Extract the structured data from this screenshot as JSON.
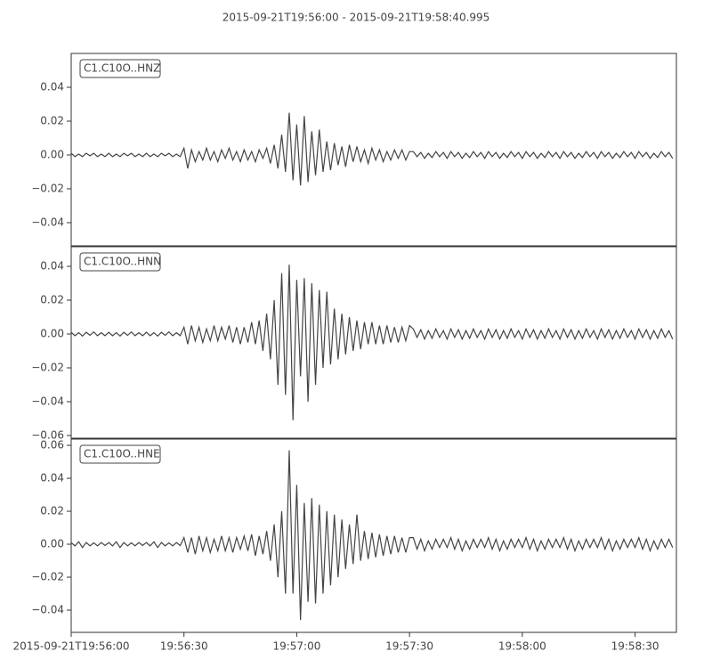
{
  "chart_data": {
    "type": "line",
    "title": "2015-09-21T19:56:00  -  2015-09-21T19:58:40.995",
    "color": "#444444",
    "xlim": [
      0,
      160.995
    ],
    "xticks": [
      {
        "value": 0,
        "label": "2015-09-21T19:56:00"
      },
      {
        "value": 30,
        "label": "19:56:30"
      },
      {
        "value": 60,
        "label": "19:57:00"
      },
      {
        "value": 90,
        "label": "19:57:30"
      },
      {
        "value": 120,
        "label": "19:58:00"
      },
      {
        "value": 150,
        "label": "19:58:30"
      }
    ],
    "x": [
      0,
      1,
      2,
      3,
      4,
      5,
      6,
      7,
      8,
      9,
      10,
      11,
      12,
      13,
      14,
      15,
      16,
      17,
      18,
      19,
      20,
      21,
      22,
      23,
      24,
      25,
      26,
      27,
      28,
      29,
      30,
      31,
      32,
      33,
      34,
      35,
      36,
      37,
      38,
      39,
      40,
      41,
      42,
      43,
      44,
      45,
      46,
      47,
      48,
      49,
      50,
      51,
      52,
      53,
      54,
      55,
      56,
      57,
      58,
      59,
      60,
      61,
      62,
      63,
      64,
      65,
      66,
      67,
      68,
      69,
      70,
      71,
      72,
      73,
      74,
      75,
      76,
      77,
      78,
      79,
      80,
      81,
      82,
      83,
      84,
      85,
      86,
      87,
      88,
      89,
      90,
      91,
      92,
      93,
      94,
      95,
      96,
      97,
      98,
      99,
      100,
      101,
      102,
      103,
      104,
      105,
      106,
      107,
      108,
      109,
      110,
      111,
      112,
      113,
      114,
      115,
      116,
      117,
      118,
      119,
      120,
      121,
      122,
      123,
      124,
      125,
      126,
      127,
      128,
      129,
      130,
      131,
      132,
      133,
      134,
      135,
      136,
      137,
      138,
      139,
      140,
      141,
      142,
      143,
      144,
      145,
      146,
      147,
      148,
      149,
      150,
      151,
      152,
      153,
      154,
      155,
      156,
      157,
      158,
      159,
      160
    ],
    "panels": [
      {
        "name": "C1.C10O..HNZ",
        "ylim": [
          -0.0537,
          0.06
        ],
        "yticks": [
          {
            "value": -0.04,
            "label": "−0.04"
          },
          {
            "value": -0.02,
            "label": "−0.02"
          },
          {
            "value": 0,
            "label": "0.00"
          },
          {
            "value": 0.02,
            "label": "0.02"
          },
          {
            "value": 0.04,
            "label": "0.04"
          }
        ],
        "values": [
          0.001,
          -0.001,
          0.0005,
          -0.001,
          0.001,
          -0.0005,
          0.001,
          -0.001,
          0.0005,
          -0.001,
          0.001,
          -0.001,
          0.0005,
          -0.001,
          0.001,
          -0.0005,
          0.001,
          -0.001,
          0.0005,
          -0.001,
          0.001,
          -0.001,
          0.0005,
          -0.001,
          0.001,
          -0.0005,
          0.001,
          -0.001,
          0.0005,
          -0.001,
          0.004,
          -0.008,
          0.003,
          -0.004,
          0.002,
          -0.003,
          0.004,
          -0.003,
          0.002,
          -0.004,
          0.003,
          -0.002,
          0.004,
          -0.003,
          0.002,
          -0.004,
          0.003,
          -0.003,
          0.002,
          -0.004,
          0.003,
          -0.002,
          0.004,
          -0.005,
          0.006,
          -0.008,
          0.012,
          -0.01,
          0.025,
          -0.015,
          0.018,
          -0.018,
          0.023,
          -0.016,
          0.014,
          -0.012,
          0.015,
          -0.01,
          0.008,
          -0.009,
          0.007,
          -0.006,
          0.005,
          -0.007,
          0.006,
          -0.004,
          0.005,
          -0.004,
          0.003,
          -0.005,
          0.004,
          -0.003,
          0.003,
          -0.004,
          0.002,
          -0.003,
          0.003,
          -0.002,
          0.003,
          -0.003,
          0.002,
          0.002,
          -0.001,
          0.0015,
          -0.002,
          0.001,
          -0.0015,
          0.002,
          -0.001,
          0.0015,
          -0.002,
          0.002,
          -0.001,
          0.0015,
          -0.002,
          0.001,
          -0.0015,
          0.002,
          -0.001,
          0.0015,
          -0.002,
          0.002,
          -0.001,
          0.0015,
          -0.002,
          0.001,
          -0.0015,
          0.002,
          -0.001,
          0.0015,
          -0.002,
          0.002,
          -0.001,
          0.0015,
          -0.002,
          0.001,
          -0.0015,
          0.002,
          -0.001,
          0.0015,
          -0.002,
          0.002,
          -0.001,
          0.0015,
          -0.002,
          0.001,
          -0.0015,
          0.002,
          -0.001,
          0.0015,
          -0.002,
          0.002,
          -0.001,
          0.0015,
          -0.002,
          0.001,
          -0.0015,
          0.002,
          -0.001,
          0.0015,
          -0.002,
          0.002,
          -0.001,
          0.0015,
          -0.002,
          0.001,
          -0.0015,
          0.002,
          -0.001,
          0.0015,
          -0.002
        ]
      },
      {
        "name": "C1.C10O..HNN",
        "ylim": [
          -0.0616,
          0.0516
        ],
        "yticks": [
          {
            "value": -0.06,
            "label": "−0.06"
          },
          {
            "value": -0.04,
            "label": "−0.04"
          },
          {
            "value": -0.02,
            "label": "−0.02"
          },
          {
            "value": 0,
            "label": "0.00"
          },
          {
            "value": 0.02,
            "label": "0.02"
          },
          {
            "value": 0.04,
            "label": "0.04"
          }
        ],
        "values": [
          0.001,
          -0.001,
          0.0008,
          -0.0012,
          0.001,
          -0.0008,
          0.0012,
          -0.001,
          0.0008,
          -0.001,
          0.001,
          -0.001,
          0.0008,
          -0.0012,
          0.001,
          -0.0008,
          0.0012,
          -0.001,
          0.0008,
          -0.001,
          0.001,
          -0.001,
          0.0008,
          -0.0012,
          0.001,
          -0.0008,
          0.0012,
          -0.001,
          0.0008,
          -0.001,
          0.004,
          -0.006,
          0.005,
          -0.004,
          0.004,
          -0.005,
          0.003,
          -0.004,
          0.005,
          -0.004,
          0.004,
          -0.003,
          0.005,
          -0.005,
          0.004,
          -0.006,
          0.004,
          -0.005,
          0.007,
          -0.006,
          0.008,
          -0.01,
          0.012,
          -0.015,
          0.02,
          -0.03,
          0.036,
          -0.036,
          0.041,
          -0.051,
          0.032,
          -0.025,
          0.033,
          -0.04,
          0.03,
          -0.03,
          0.026,
          -0.02,
          0.025,
          -0.018,
          0.015,
          -0.015,
          0.012,
          -0.012,
          0.01,
          -0.01,
          0.008,
          -0.009,
          0.007,
          -0.006,
          0.007,
          -0.006,
          0.005,
          -0.006,
          0.005,
          -0.005,
          0.004,
          -0.005,
          0.004,
          -0.004,
          0.005,
          0.003,
          -0.002,
          0.0025,
          -0.003,
          0.002,
          -0.0025,
          0.003,
          -0.002,
          0.002,
          -0.003,
          0.003,
          -0.002,
          0.0025,
          -0.003,
          0.002,
          -0.0025,
          0.003,
          -0.002,
          0.002,
          -0.003,
          0.003,
          -0.002,
          0.0025,
          -0.003,
          0.002,
          -0.0025,
          0.003,
          -0.002,
          0.002,
          -0.003,
          0.003,
          -0.002,
          0.0025,
          -0.003,
          0.002,
          -0.0025,
          0.003,
          -0.002,
          0.002,
          -0.003,
          0.003,
          -0.002,
          0.0025,
          -0.003,
          0.002,
          -0.0025,
          0.003,
          -0.002,
          0.002,
          -0.003,
          0.003,
          -0.002,
          0.0025,
          -0.003,
          0.002,
          -0.0025,
          0.003,
          -0.002,
          0.002,
          -0.003,
          0.003,
          -0.002,
          0.0025,
          -0.003,
          0.002,
          -0.0025,
          0.003,
          -0.002,
          0.002,
          -0.003
        ]
      },
      {
        "name": "C1.C10O..HNE",
        "ylim": [
          -0.0535,
          0.0638
        ],
        "yticks": [
          {
            "value": -0.04,
            "label": "−0.04"
          },
          {
            "value": -0.02,
            "label": "−0.02"
          },
          {
            "value": 0,
            "label": "0.00"
          },
          {
            "value": 0.02,
            "label": "0.02"
          },
          {
            "value": 0.04,
            "label": "0.04"
          },
          {
            "value": 0.06,
            "label": "0.06"
          }
        ],
        "values": [
          0.001,
          -0.001,
          0.0015,
          -0.002,
          0.001,
          -0.001,
          0.0008,
          -0.001,
          0.001,
          -0.0008,
          0.001,
          -0.001,
          0.0015,
          -0.002,
          0.001,
          -0.001,
          0.0008,
          -0.001,
          0.001,
          -0.0008,
          0.001,
          -0.001,
          0.0015,
          -0.002,
          0.001,
          -0.001,
          0.0008,
          -0.001,
          0.001,
          -0.0008,
          0.004,
          -0.005,
          0.004,
          -0.006,
          0.005,
          -0.004,
          0.004,
          -0.005,
          0.003,
          -0.004,
          0.005,
          -0.004,
          0.004,
          -0.005,
          0.004,
          -0.003,
          0.005,
          -0.004,
          0.006,
          -0.007,
          0.005,
          -0.006,
          0.008,
          -0.01,
          0.012,
          -0.02,
          0.02,
          -0.03,
          0.057,
          -0.03,
          0.036,
          -0.046,
          0.025,
          -0.035,
          0.028,
          -0.036,
          0.024,
          -0.03,
          0.02,
          -0.025,
          0.018,
          -0.02,
          0.015,
          -0.015,
          0.012,
          -0.012,
          0.018,
          -0.01,
          0.008,
          -0.009,
          0.007,
          -0.008,
          0.006,
          -0.007,
          0.005,
          -0.006,
          0.005,
          -0.005,
          0.004,
          -0.005,
          0.004,
          0.004,
          -0.003,
          0.003,
          -0.004,
          0.002,
          -0.003,
          0.003,
          -0.002,
          0.003,
          -0.002,
          0.004,
          -0.003,
          0.003,
          -0.004,
          0.002,
          -0.003,
          0.003,
          -0.002,
          0.003,
          -0.002,
          0.004,
          -0.003,
          0.003,
          -0.004,
          0.002,
          -0.003,
          0.003,
          -0.002,
          0.003,
          -0.002,
          0.004,
          -0.003,
          0.003,
          -0.004,
          0.002,
          -0.003,
          0.003,
          -0.002,
          0.003,
          -0.002,
          0.004,
          -0.003,
          0.003,
          -0.004,
          0.002,
          -0.003,
          0.003,
          -0.002,
          0.003,
          -0.002,
          0.004,
          -0.003,
          0.003,
          -0.004,
          0.002,
          -0.003,
          0.003,
          -0.002,
          0.003,
          -0.002,
          0.004,
          -0.003,
          0.003,
          -0.004,
          0.002,
          -0.003,
          0.003,
          -0.002,
          0.003,
          -0.002
        ]
      }
    ]
  }
}
